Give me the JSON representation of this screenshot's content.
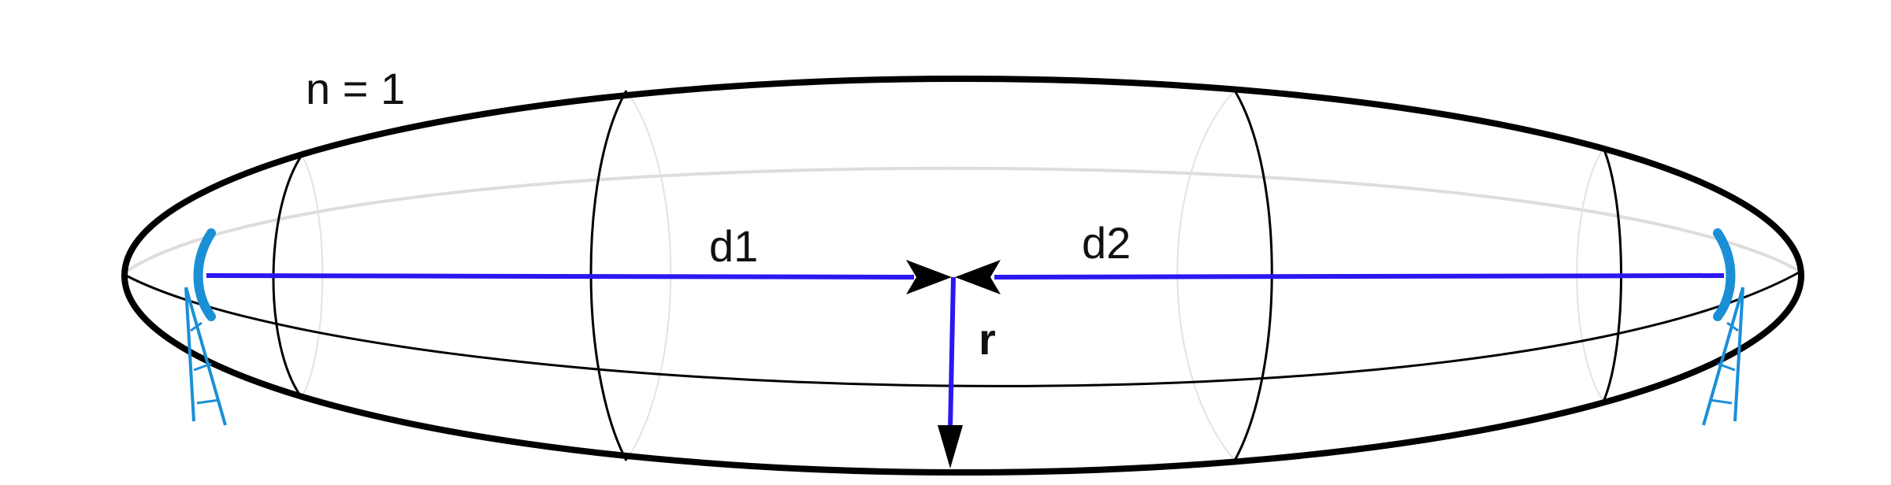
{
  "labels": {
    "zone": "n = 1",
    "distance_1": "d1",
    "distance_2": "d2",
    "radius": "r"
  },
  "colors": {
    "outline": "#000000",
    "faint": "#d9d9d9",
    "path": "#2a18f0",
    "antenna": "#1a8fd6",
    "background": "#ffffff"
  },
  "icons": {
    "left_antenna": "antenna-tower-icon",
    "right_antenna": "antenna-tower-icon"
  }
}
